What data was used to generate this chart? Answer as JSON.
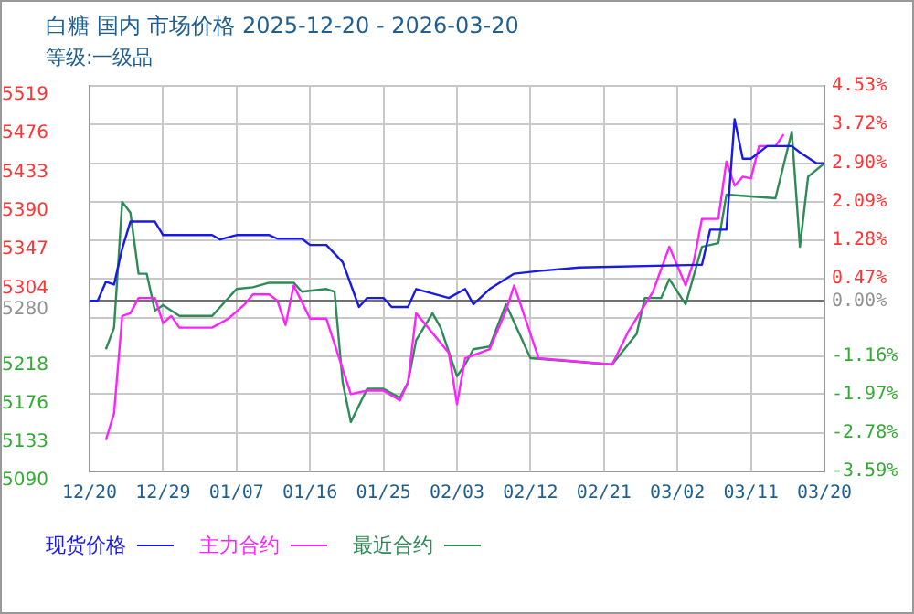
{
  "chart_data": {
    "type": "line",
    "title": "白糖 国内 市场价格 2025-12-20 - 2026-03-20",
    "subtitle": "等级:一级品",
    "marker": "none",
    "line_style": "solid",
    "grid": true,
    "legend": "bottom left",
    "xlim": [
      "2025-12-20",
      "2026-03-20"
    ],
    "xticks": [
      {
        "value": "2025-12-20",
        "label": "12/20"
      },
      {
        "value": "2025-12-29",
        "label": "12/29"
      },
      {
        "value": "2026-01-07",
        "label": "01/07"
      },
      {
        "value": "2026-01-16",
        "label": "01/16"
      },
      {
        "value": "2026-01-25",
        "label": "01/25"
      },
      {
        "value": "2026-02-03",
        "label": "02/03"
      },
      {
        "value": "2026-02-12",
        "label": "02/12"
      },
      {
        "value": "2026-02-21",
        "label": "02/21"
      },
      {
        "value": "2026-03-02",
        "label": "03/02"
      },
      {
        "value": "2026-03-11",
        "label": "03/11"
      },
      {
        "value": "2026-03-20",
        "label": "03/20"
      }
    ],
    "ylim": [
      5090,
      5519
    ],
    "yticks": [
      5519,
      5476,
      5433,
      5390,
      5347,
      5304,
      5280,
      {
        "value": 5261,
        "label": null
      },
      5218,
      5176,
      5133,
      5090
    ],
    "y2lim": [
      -3.59,
      4.53
    ],
    "y2ticks": [
      {
        "value": 4.53,
        "label": "4.53%"
      },
      {
        "value": 3.72,
        "label": "3.72%"
      },
      {
        "value": 2.9,
        "label": "2.90%"
      },
      {
        "value": 2.09,
        "label": "2.09%"
      },
      {
        "value": 1.28,
        "label": "1.28%"
      },
      {
        "value": 0.47,
        "label": "0.47%"
      },
      {
        "value": 0,
        "label": "0.00%"
      },
      {
        "value": -1.16,
        "label": "-1.16%"
      },
      {
        "value": -1.97,
        "label": "-1.97%"
      },
      {
        "value": -2.78,
        "label": "-2.78%"
      },
      {
        "value": -3.59,
        "label": "-3.59%"
      }
    ],
    "ref_lines": [
      {
        "axis": "y",
        "value": 5280,
        "color": "#707070"
      }
    ],
    "series": [
      {
        "name": "现货价格",
        "color": "#1a1ae6",
        "x": [
          "2025-12-20",
          "2025-12-21",
          "2025-12-22",
          "2025-12-23",
          "2025-12-24",
          "2025-12-25",
          "2025-12-28",
          "2025-12-29",
          "2026-01-04",
          "2026-01-05",
          "2026-01-07",
          "2026-01-11",
          "2026-01-12",
          "2026-01-15",
          "2026-01-16",
          "2026-01-18",
          "2026-01-20",
          "2026-01-22",
          "2026-01-23",
          "2026-01-25",
          "2026-01-26",
          "2026-01-28",
          "2026-01-29",
          "2026-02-02",
          "2026-02-04",
          "2026-02-05",
          "2026-02-07",
          "2026-02-10",
          "2026-02-13",
          "2026-02-18",
          "2026-03-05",
          "2026-03-06",
          "2026-03-08",
          "2026-03-09",
          "2026-03-10",
          "2026-03-11",
          "2026-03-13",
          "2026-03-16",
          "2026-03-17",
          "2026-03-19",
          "2026-03-20"
        ],
        "values": [
          5280,
          5280,
          5301,
          5298,
          5338,
          5368,
          5368,
          5353,
          5353,
          5348,
          5353,
          5353,
          5349,
          5349,
          5342,
          5342,
          5323,
          5273,
          5283,
          5283,
          5273,
          5273,
          5293,
          5283,
          5293,
          5276,
          5293,
          5310,
          5313,
          5317,
          5320,
          5359,
          5359,
          5482,
          5438,
          5438,
          5452,
          5452,
          5445,
          5433,
          5433
        ]
      },
      {
        "name": "主力合约",
        "color": "#ff22ff",
        "x": [
          "2025-12-22",
          "2025-12-23",
          "2025-12-24",
          "2025-12-25",
          "2025-12-26",
          "2025-12-28",
          "2025-12-29",
          "2025-12-30",
          "2025-12-31",
          "2026-01-04",
          "2026-01-06",
          "2026-01-08",
          "2026-01-09",
          "2026-01-11",
          "2026-01-12",
          "2026-01-13",
          "2026-01-14",
          "2026-01-16",
          "2026-01-18",
          "2026-01-21",
          "2026-01-23",
          "2026-01-25",
          "2026-01-27",
          "2026-01-28",
          "2026-01-29",
          "2026-02-02",
          "2026-02-03",
          "2026-02-04",
          "2026-02-07",
          "2026-02-09",
          "2026-02-10",
          "2026-02-13",
          "2026-02-22",
          "2026-02-24",
          "2026-02-27",
          "2026-03-01",
          "2026-03-03",
          "2026-03-04",
          "2026-03-05",
          "2026-03-07",
          "2026-03-08",
          "2026-03-09",
          "2026-03-10",
          "2026-03-11",
          "2026-03-12",
          "2026-03-14",
          "2026-03-15"
        ],
        "values": [
          5125,
          5155,
          5263,
          5266,
          5283,
          5283,
          5255,
          5263,
          5250,
          5250,
          5260,
          5276,
          5287,
          5287,
          5280,
          5253,
          5297,
          5260,
          5260,
          5176,
          5180,
          5180,
          5169,
          5189,
          5266,
          5222,
          5165,
          5216,
          5226,
          5269,
          5297,
          5216,
          5209,
          5246,
          5290,
          5340,
          5297,
          5324,
          5371,
          5371,
          5435,
          5408,
          5418,
          5416,
          5452,
          5452,
          5465
        ]
      },
      {
        "name": "最近合约",
        "color": "#2e8b57",
        "x": [
          "2025-12-22",
          "2025-12-23",
          "2025-12-24",
          "2025-12-25",
          "2025-12-26",
          "2025-12-27",
          "2025-12-28",
          "2025-12-29",
          "2025-12-31",
          "2026-01-04",
          "2026-01-05",
          "2026-01-07",
          "2026-01-09",
          "2026-01-11",
          "2026-01-14",
          "2026-01-15",
          "2026-01-18",
          "2026-01-19",
          "2026-01-20",
          "2026-01-21",
          "2026-01-23",
          "2026-01-25",
          "2026-01-27",
          "2026-01-28",
          "2026-01-29",
          "2026-01-31",
          "2026-02-01",
          "2026-02-03",
          "2026-02-04",
          "2026-02-05",
          "2026-02-07",
          "2026-02-09",
          "2026-02-12",
          "2026-02-22",
          "2026-02-25",
          "2026-02-26",
          "2026-02-28",
          "2026-03-01",
          "2026-03-03",
          "2026-03-05",
          "2026-03-07",
          "2026-03-08",
          "2026-03-14",
          "2026-03-16",
          "2026-03-17",
          "2026-03-18",
          "2026-03-20"
        ],
        "values": [
          5226,
          5250,
          5390,
          5378,
          5310,
          5310,
          5269,
          5275,
          5263,
          5263,
          5273,
          5293,
          5295,
          5300,
          5300,
          5290,
          5293,
          5290,
          5189,
          5145,
          5182,
          5182,
          5172,
          5189,
          5236,
          5266,
          5250,
          5196,
          5209,
          5226,
          5229,
          5276,
          5216,
          5209,
          5243,
          5283,
          5283,
          5304,
          5276,
          5340,
          5344,
          5398,
          5394,
          5468,
          5340,
          5418,
          5433
        ]
      }
    ]
  }
}
